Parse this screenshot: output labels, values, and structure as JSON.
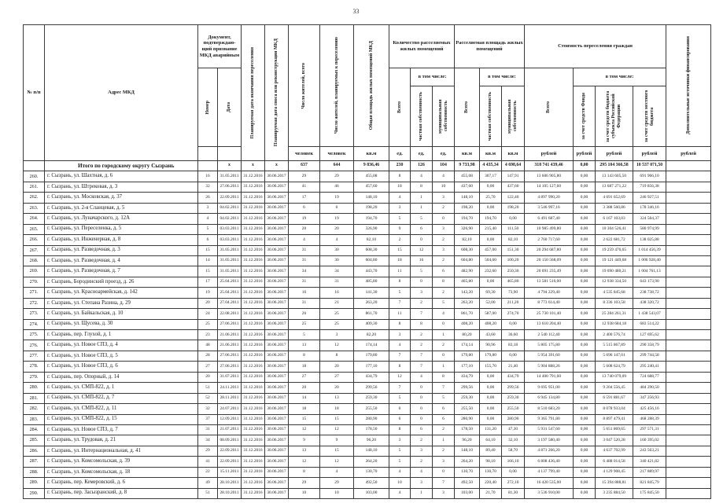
{
  "page": {
    "number": "33"
  },
  "table": {
    "header": {
      "col_num": "№ п/п",
      "col_address": "Адрес МКД",
      "doc_group": "Документ, подтверждаю-щий признание МКД аварийным",
      "doc_number": "Номер",
      "doc_date": "Дата",
      "col_resettle_date": "Планируемая дата окончания переселения",
      "col_demolition_date": "Планируемая дата сноса или реконструкции МКД",
      "col_residents": "Число жителей, всего",
      "col_residents_planned": "Число жителей, планируемых к переселению",
      "col_total_area": "Общая площадь жилых помещений МКД",
      "units_group": "Количество расселяемых жилых помещений",
      "area_group": "Расселяемая площадь жилых помещений",
      "cost_group": "Стоимость переселения граждан",
      "incl": "в том числе:",
      "total_label": "Всего",
      "private_label": "частная собственность",
      "municipal_label": "муниципальная собственность",
      "cost_fund": "за счет средств Фонда",
      "cost_subject": "за счет средств бюджета субъекта Российской Федерации",
      "cost_local": "за счет средств местного бюджета",
      "col_extra": "Дополнительные источники финансирования",
      "units": [
        "человек",
        "человек",
        "кв.м",
        "ед.",
        "ед.",
        "ед.",
        "кв.м",
        "кв.м",
        "кв.м",
        "рублей",
        "рублей",
        "рублей",
        "рублей",
        "рублей"
      ]
    },
    "total_row": {
      "cells": [
        "",
        "Итого по городскому округу Сызрань",
        "",
        "х",
        "х",
        "х",
        "637",
        "644",
        "9 836,46",
        "230",
        "126",
        "104",
        "9 733,98",
        "4 435,34",
        "4 698,64",
        "318 741 439,46",
        "0,00",
        "295 104 366,58",
        "10 537 071,50",
        ""
      ]
    },
    "rows": [
      [
        "260.",
        "г. Сызрань, ул. Шахтная, д. 6",
        "16",
        "31.05.2011",
        "31.12.2016",
        "30.06.2017",
        "29",
        "29",
        "455,08",
        "8",
        "4",
        "4",
        "455,08",
        "307,17",
        "147,91",
        "13 606 905,80",
        "0,00",
        "13 143 605,50",
        "691 966,10",
        ""
      ],
      [
        "261.",
        "г. Сызрань, ул. Штрековая, д. 3",
        "32",
        "27.06.2011",
        "31.12.2016",
        "30.06.2017",
        "41",
        "46",
        "457,60",
        "18",
        "8",
        "10",
        "437,60",
        "0,00",
        "437,60",
        "14 105 127,60",
        "0,00",
        "13 687 271,22",
        "719 856,38",
        ""
      ],
      [
        "262.",
        "г. Сызрань, ул. Московская, д. 37",
        "26",
        "22.09.2011",
        "31.12.2016",
        "30.06.2017",
        "17",
        "19",
        "148,10",
        "4",
        "1",
        "3",
        "148,10",
        "25,70",
        "122,40",
        "4 897 990,20",
        "0,00",
        "4 691 652,69",
        "246 927,51",
        ""
      ],
      [
        "263.",
        "г. Сызрань, ул. 2-я Сланцевая, д. 5",
        "3",
        "04.02.2011",
        "31.12.2016",
        "30.06.2017",
        "6",
        "6",
        "198,20",
        "3",
        "1",
        "2",
        "198,20",
        "0,00",
        "198,20",
        "3 546 997,16",
        "0,00",
        "3 388 560,86",
        "178 346,16",
        ""
      ],
      [
        "264.",
        "г. Сызрань, ул. Луначарского, д. 12А",
        "4",
        "04.02.2011",
        "31.12.2016",
        "30.06.2017",
        "19",
        "19",
        "194,70",
        "5",
        "5",
        "0",
        "194,70",
        "194,70",
        "0,00",
        "6 491 687,40",
        "0,00",
        "6 167 103,03",
        "324 584,37",
        ""
      ],
      [
        "265.",
        "г. Сызрань, ул. Переселенка, д. 5",
        "5",
        "03.03.2011",
        "31.12.2016",
        "30.06.2017",
        "20",
        "20",
        "326,90",
        "9",
        "6",
        "3",
        "326,90",
        "215,40",
        "111,50",
        "10 985 499,80",
        "0,00",
        "10 304 526,41",
        "580 974,99",
        ""
      ],
      [
        "266.",
        "г. Сызрань, ул. Инженерная, д. 8",
        "6",
        "03.03.2011",
        "31.12.2016",
        "30.06.2017",
        "4",
        "4",
        "82,10",
        "2",
        "0",
        "2",
        "82,10",
        "0,00",
        "82,10",
        "2 760 717,60",
        "0,00",
        "2 622 681,72",
        "138 025,88",
        ""
      ],
      [
        "267.",
        "г. Сызрань, ул. Разведочная, д. 3",
        "15",
        "31.05.2011",
        "31.12.2016",
        "30.06.2017",
        "31",
        "30",
        "608,30",
        "15",
        "12",
        "3",
        "608,30",
        "457,00",
        "151,30",
        "20 294 687,80",
        "0,00",
        "19 259 476,65",
        "1 014 456,39",
        ""
      ],
      [
        "268.",
        "г. Сызрань, ул. Разведочная, д. 4",
        "14",
        "31.05.2011",
        "31.12.2016",
        "30.06.2017",
        "31",
        "30",
        "604,80",
        "18",
        "16",
        "2",
        "604,80",
        "504,60",
        "100,20",
        "20 150 568,09",
        "0,00",
        "19 121 449,68",
        "1 006 928,40",
        ""
      ],
      [
        "269.",
        "г. Сызрань, ул. Разведочная, д. 7",
        "15",
        "31.05.2011",
        "31.12.2016",
        "30.06.2017",
        "34",
        "34",
        "443,70",
        "11",
        "5",
        "6",
        "482,90",
        "232,60",
        "250,30",
        "20 091 235,49",
        "0,00",
        "19 090 480,21",
        "1 004 761,13",
        ""
      ],
      [
        "270.",
        "г. Сызрань, Бородинский проезд, д. 26",
        "17",
        "25.04.2011",
        "31.12.2016",
        "30.06.2017",
        "31",
        "31",
        "485,80",
        "8",
        "0",
        "8",
        "465,80",
        "0,00",
        "465,80",
        "13 581 516,00",
        "0,00",
        "12 938 334,50",
        "643 173,90",
        ""
      ],
      [
        "271.",
        "г. Сызрань, ул. Красноармейская, д. 142",
        "19",
        "25.04.2011",
        "31.12.2016",
        "30.06.2017",
        "16",
        "16",
        "141,30",
        "5",
        "3",
        "2",
        "143,20",
        "69,30",
        "73,90",
        "4 794 229,40",
        "0,00",
        "4 535 845,68",
        "238 738,72",
        ""
      ],
      [
        "272.",
        "г. Сызрань, ул. Степана Разина, д. 29",
        "20",
        "27.04.2011",
        "31.12.2016",
        "30.06.2017",
        "31",
        "21",
        "263,20",
        "7",
        "2",
        "5",
        "263,20",
        "52,00",
        "211,20",
        "8 773 614,40",
        "0,00",
        "8 336 103,58",
        "438 320,72",
        ""
      ],
      [
        "273.",
        "г. Сызрань, ул. Байкальская, д. 10",
        "24",
        "22.08.2011",
        "31.12.2016",
        "30.06.2017",
        "26",
        "25",
        "861,70",
        "11",
        "7",
        "4",
        "861,70",
        "587,00",
        "274,70",
        "25 730 101,40",
        "0,00",
        "25 284 261,31",
        "1 438 543,07",
        ""
      ],
      [
        "274.",
        "г. Сызрань, ул. Щусева, д. 30",
        "25",
        "27.06.2011",
        "31.12.2016",
        "30.06.2017",
        "25",
        "25",
        "409,30",
        "8",
        "8",
        "0",
        "408,20",
        "408,20",
        "0,00",
        "13 610 204,40",
        "0,00",
        "12 938 684,18",
        "683 514,22",
        ""
      ],
      [
        "275.",
        "г. Сызрань, пер. Глухой, д. 1",
        "23",
        "21.06.2011",
        "31.12.2016",
        "30.06.2017",
        "5",
        "3",
        "82,20",
        "3",
        "2",
        "1",
        "80,20",
        "43,60",
        "36,60",
        "2 540 112,40",
        "0,00",
        "2 400 576,74",
        "127 695,62",
        ""
      ],
      [
        "276.",
        "г. Сызрань, ул. Новое СПЗ, д. 4",
        "48",
        "21.06.2011",
        "31.12.2016",
        "30.06.2017",
        "13",
        "12",
        "174,14",
        "4",
        "2",
        "2",
        "174,14",
        "90,96",
        "83,18",
        "5 805 175,80",
        "0,00",
        "5 515 867,89",
        "290 358,79",
        ""
      ],
      [
        "277.",
        "г. Сызрань, ул. Новое СПЗ, д. 5",
        "28",
        "27.06.2011",
        "31.12.2016",
        "30.06.2017",
        "8",
        "8",
        "179,80",
        "7",
        "7",
        "0",
        "179,80",
        "179,80",
        "0,00",
        "5 954 391,60",
        "0,00",
        "5 696 147,01",
        "299 744,58",
        ""
      ],
      [
        "278.",
        "г. Сызрань, ул. Новое СПЗ, д. 6",
        "27",
        "27.06.2011",
        "31.12.2016",
        "30.06.2017",
        "18",
        "20",
        "177,10",
        "8",
        "7",
        "1",
        "177,10",
        "155,70",
        "21,40",
        "5 904 888,26",
        "0,00",
        "5 608 624,79",
        "295 240,41",
        ""
      ],
      [
        "279.",
        "г. Сызрань, пер. Опорный, д. 14",
        "20",
        "31.07.2011",
        "31.12.2016",
        "30.06.2017",
        "27",
        "27",
        "434,79",
        "12",
        "4",
        "8",
        "434,79",
        "0,00",
        "434,79",
        "14 400 791,60",
        "0,00",
        "13 740 079,09",
        "724 688,77",
        ""
      ],
      [
        "280.",
        "г. Сызрань, ул. СМП-822, д. 1",
        "51",
        "24.11.2011",
        "31.12.2016",
        "30.06.2017",
        "20",
        "20",
        "299,56",
        "7",
        "0",
        "7",
        "299,56",
        "0,00",
        "299,56",
        "9 695 951,00",
        "0,00",
        "9 204 556,45",
        "484 290,50",
        ""
      ],
      [
        "281.",
        "г. Сызрань, ул. СМП-822, д. 7",
        "52",
        "28.11.2011",
        "31.12.2016",
        "30.06.2017",
        "14",
        "13",
        "259,30",
        "5",
        "0",
        "5",
        "259,30",
        "0,00",
        "259,30",
        "6 945 134,80",
        "0,00",
        "6 591 881,67",
        "347 256,93",
        ""
      ],
      [
        "282.",
        "г. Сызрань, ул. СМП-822, д. 11",
        "32",
        "24.07.2011",
        "31.12.2016",
        "30.06.2017",
        "18",
        "18",
        "255,50",
        "6",
        "0",
        "6",
        "255,50",
        "0,00",
        "255,50",
        "8 510 683,20",
        "0,00",
        "8 078 933,04",
        "425 456,16",
        ""
      ],
      [
        "283.",
        "г. Сызрань, ул. СМП-822, д. 15",
        "37",
        "12.09.2011",
        "31.12.2016",
        "30.06.2017",
        "15",
        "15",
        "280,90",
        "6",
        "0",
        "6",
        "280,90",
        "0,00",
        "280,90",
        "9 365 791,80",
        "0,00",
        "8 897 479,41",
        "468 288,39",
        ""
      ],
      [
        "284.",
        "г. Сызрань, ул. Новое СПЗ, д. 7",
        "31",
        "21.07.2011",
        "31.12.2016",
        "30.06.2017",
        "12",
        "12",
        "178,50",
        "8",
        "6",
        "2",
        "178,50",
        "131,20",
        "47,30",
        "5 931 547,60",
        "0,00",
        "5 651 869,65",
        "297 571,31",
        ""
      ],
      [
        "285.",
        "г. Сызрань, ул. Трудовая, д. 21",
        "34",
        "08.09.2011",
        "31.12.2016",
        "30.06.2017",
        "9",
        "9",
        "96,20",
        "3",
        "2",
        "1",
        "96,20",
        "64,10",
        "32,10",
        "3 197 580,40",
        "0,00",
        "3 047 520,28",
        "160 395,02",
        ""
      ],
      [
        "286.",
        "г. Сызрань, ул. Интернациональная, д. 41",
        "29",
        "22.09.2011",
        "31.12.2016",
        "30.06.2017",
        "13",
        "15",
        "148,10",
        "5",
        "3",
        "2",
        "148,10",
        "89,40",
        "58,70",
        "4 871 266,20",
        "0,00",
        "4 637 702,99",
        "243 563,21",
        ""
      ],
      [
        "287.",
        "г. Сызрань, ул. Комсомольская, д. 39",
        "41",
        "22.09.2011",
        "31.12.2016",
        "30.06.2017",
        "12",
        "12",
        "264,20",
        "5",
        "2",
        "3",
        "264,20",
        "98,10",
        "166,10",
        "6 808 436,40",
        "0,00",
        "6 488 014,58",
        "340 421,82",
        ""
      ],
      [
        "288.",
        "г. Сызрань, ул. Комсомольская, д. 18",
        "22",
        "15.11.2011",
        "31.12.2016",
        "30.06.2017",
        "8",
        "4",
        "130,70",
        "4",
        "4",
        "0",
        "130,70",
        "130,70",
        "0,00",
        "4 137 799,40",
        "0,00",
        "4 129 908,45",
        "217 889,97",
        ""
      ],
      [
        "289.",
        "г. Сызрань, пер. Кемеровский, д. 6",
        "49",
        "28.10.2011",
        "31.12.2016",
        "30.06.2017",
        "29",
        "29",
        "492,50",
        "10",
        "3",
        "7",
        "492,50",
        "220,40",
        "272,10",
        "16 420 535,00",
        "0,00",
        "15 394 888,81",
        "821 845,79",
        ""
      ],
      [
        "290.",
        "г. Сызрань, пер. Засызранский, д. 8",
        "51",
        "28.10.2011",
        "31.12.2016",
        "30.06.2017",
        "10",
        "10",
        "103,00",
        "4",
        "1",
        "3",
        "103,00",
        "21,70",
        "81,30",
        "3 536 910,00",
        "0,00",
        "3 235 884,50",
        "175 845,50",
        ""
      ]
    ]
  }
}
